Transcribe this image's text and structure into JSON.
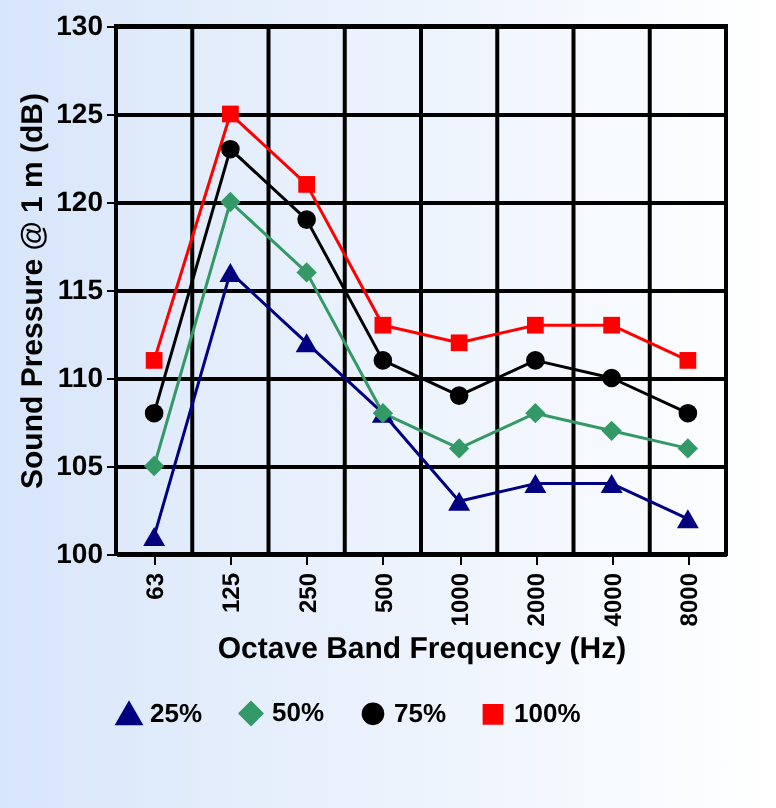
{
  "chart_data": {
    "type": "line",
    "xlabel": "Octave Band Frequency (Hz)",
    "ylabel": "Sound Pressure  @ 1 m (dB)",
    "categories": [
      "63",
      "125",
      "250",
      "500",
      "1000",
      "2000",
      "4000",
      "8000"
    ],
    "ylim": [
      100,
      130
    ],
    "yticks": [
      100,
      105,
      110,
      115,
      120,
      125,
      130
    ],
    "grid": true,
    "legend": "bottom",
    "series": [
      {
        "name": "25%",
        "color": "#000080",
        "marker": "triangle",
        "values": [
          101,
          116,
          112,
          108,
          103,
          104,
          104,
          102
        ]
      },
      {
        "name": "50%",
        "color": "#339966",
        "marker": "diamond",
        "values": [
          105,
          120,
          116,
          108,
          106,
          108,
          107,
          106
        ]
      },
      {
        "name": "75%",
        "color": "#000000",
        "marker": "circle",
        "values": [
          108,
          123,
          119,
          111,
          109,
          111,
          110,
          108
        ]
      },
      {
        "name": "100%",
        "color": "#ff0000",
        "marker": "square",
        "values": [
          111,
          125,
          121,
          113,
          112,
          113,
          113,
          111
        ]
      }
    ]
  }
}
